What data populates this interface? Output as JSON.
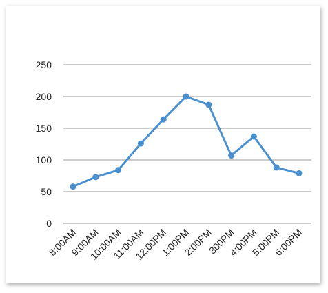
{
  "chart_data": {
    "type": "line",
    "categories": [
      "8:00AM",
      "9:00AM",
      "10:00AM",
      "11:00AM",
      "12:00PM",
      "1:00PM",
      "2:00PM",
      "300PM",
      "4:00PM",
      "5:00PM",
      "6:00PM"
    ],
    "series": [
      {
        "values": [
          58,
          73,
          84,
          126,
          164,
          200,
          187,
          107,
          137,
          88,
          79
        ]
      }
    ],
    "yticks": [
      0,
      50,
      100,
      150,
      200,
      250
    ],
    "ylim": [
      0,
      250
    ],
    "grid": true,
    "line_color": "#4a90cf",
    "grid_color": "#999999"
  }
}
